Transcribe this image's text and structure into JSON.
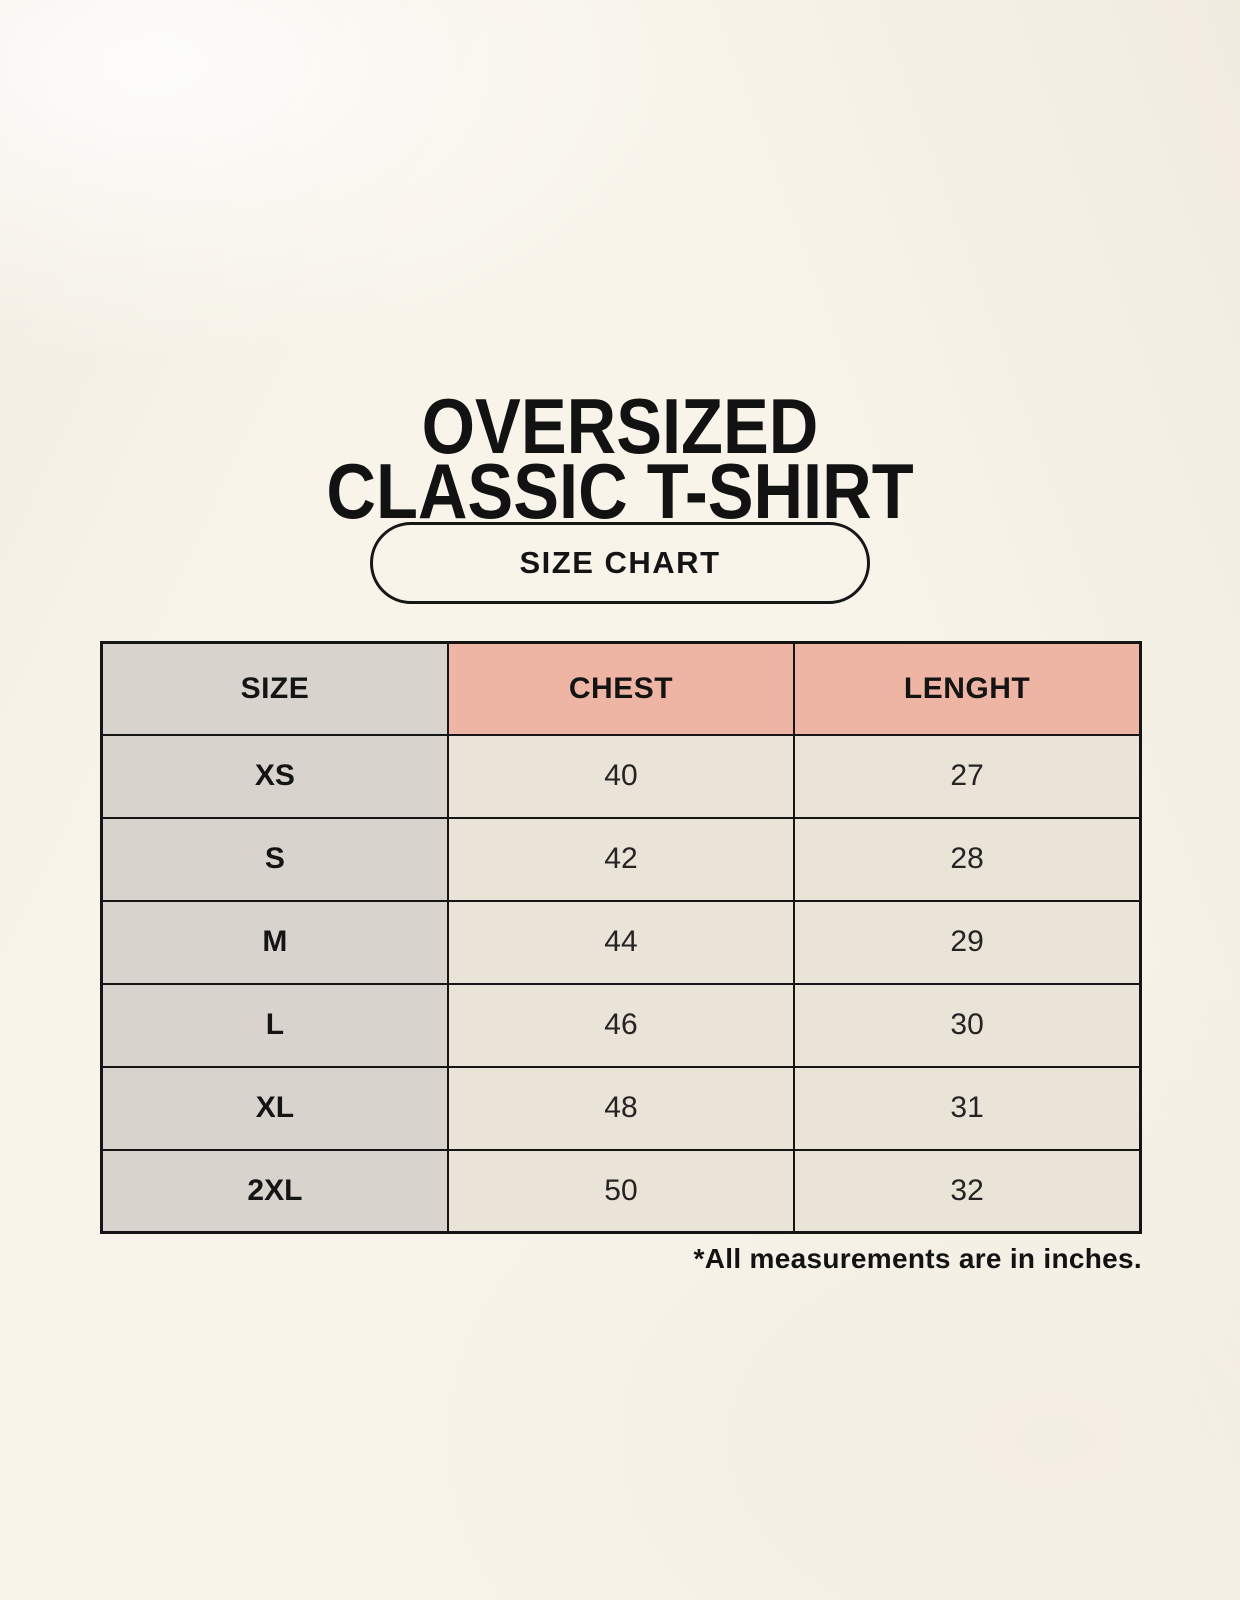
{
  "page": {
    "title_line1": "OVERSIZED",
    "title_line2": "CLASSIC T-SHIRT",
    "size_chart_label": "SIZE CHART",
    "footnote": "*All measurements are in inches."
  },
  "table": {
    "columns": [
      "SIZE",
      "CHEST",
      "LENGHT"
    ],
    "rows": [
      [
        "XS",
        "40",
        "27"
      ],
      [
        "S",
        "42",
        "28"
      ],
      [
        "M",
        "44",
        "29"
      ],
      [
        "L",
        "46",
        "30"
      ],
      [
        "XL",
        "48",
        "31"
      ],
      [
        "2XL",
        "50",
        "32"
      ]
    ]
  },
  "colors": {
    "background": "#f8f4ea",
    "header_accent": "#efb5a4",
    "size_column": "#d9d3ce",
    "value_cell": "#e9e3d8",
    "border": "#151515",
    "text": "#141414"
  },
  "chart_data": {
    "type": "table",
    "title": "OVERSIZED CLASSIC T-SHIRT — SIZE CHART",
    "columns": [
      "SIZE",
      "CHEST",
      "LENGHT"
    ],
    "rows": [
      {
        "size": "XS",
        "chest": 40,
        "length": 27
      },
      {
        "size": "S",
        "chest": 42,
        "length": 28
      },
      {
        "size": "M",
        "chest": 44,
        "length": 29
      },
      {
        "size": "L",
        "chest": 46,
        "length": 30
      },
      {
        "size": "XL",
        "chest": 48,
        "length": 31
      },
      {
        "size": "2XL",
        "chest": 50,
        "length": 32
      }
    ],
    "units": "inches",
    "note": "*All measurements are in inches."
  }
}
